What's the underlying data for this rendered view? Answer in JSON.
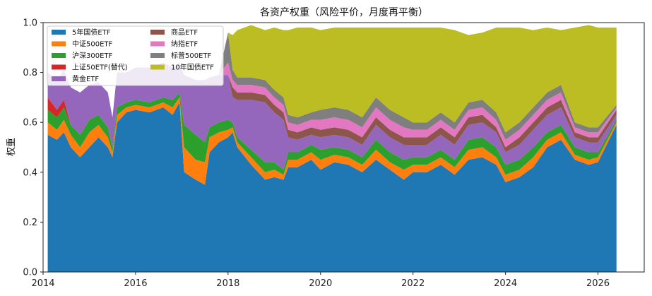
{
  "chart_data": {
    "type": "area",
    "title": "各资产权重（风险平价，月度再平衡）",
    "xlabel": "",
    "ylabel": "权重",
    "xlim": [
      2014.0,
      2027.0
    ],
    "ylim": [
      0.0,
      1.0
    ],
    "xticks": [
      2014,
      2016,
      2018,
      2020,
      2022,
      2024,
      2026
    ],
    "yticks": [
      0.0,
      0.2,
      0.4,
      0.6,
      0.8,
      1.0
    ],
    "ytick_labels": [
      "0.0",
      "0.2",
      "0.4",
      "0.6",
      "0.8",
      "1.0"
    ],
    "grid": false,
    "legend_position": "top-left",
    "stacked": true,
    "x": [
      2014.1,
      2014.3,
      2014.45,
      2014.6,
      2014.8,
      2015.0,
      2015.2,
      2015.4,
      2015.5,
      2015.6,
      2015.8,
      2016.0,
      2016.3,
      2016.6,
      2016.8,
      2016.95,
      2017.05,
      2017.3,
      2017.5,
      2017.6,
      2017.8,
      2018.0,
      2018.1,
      2018.2,
      2018.5,
      2018.8,
      2019.0,
      2019.2,
      2019.3,
      2019.5,
      2019.8,
      2020.0,
      2020.3,
      2020.6,
      2020.9,
      2021.2,
      2021.5,
      2021.8,
      2022.0,
      2022.3,
      2022.6,
      2022.9,
      2023.2,
      2023.5,
      2023.8,
      2024.0,
      2024.3,
      2024.6,
      2024.9,
      2025.2,
      2025.5,
      2025.8,
      2026.0,
      2026.4
    ],
    "series": [
      {
        "name": "5年国债ETF",
        "color": "#1f77b4",
        "values": [
          0.55,
          0.53,
          0.56,
          0.5,
          0.46,
          0.5,
          0.54,
          0.5,
          0.46,
          0.6,
          0.64,
          0.65,
          0.64,
          0.66,
          0.63,
          0.68,
          0.4,
          0.37,
          0.35,
          0.48,
          0.52,
          0.54,
          0.56,
          0.5,
          0.43,
          0.37,
          0.38,
          0.37,
          0.42,
          0.42,
          0.45,
          0.41,
          0.44,
          0.43,
          0.4,
          0.45,
          0.41,
          0.37,
          0.4,
          0.4,
          0.43,
          0.39,
          0.45,
          0.46,
          0.43,
          0.36,
          0.38,
          0.42,
          0.5,
          0.53,
          0.45,
          0.43,
          0.44,
          0.59
        ]
      },
      {
        "name": "中证500ETF",
        "color": "#ff7f0e",
        "values": [
          0.05,
          0.04,
          0.05,
          0.05,
          0.04,
          0.06,
          0.05,
          0.04,
          0.02,
          0.03,
          0.02,
          0.02,
          0.02,
          0.02,
          0.03,
          0.02,
          0.1,
          0.08,
          0.09,
          0.06,
          0.04,
          0.03,
          0.02,
          0.02,
          0.03,
          0.03,
          0.03,
          0.02,
          0.03,
          0.03,
          0.03,
          0.04,
          0.03,
          0.03,
          0.03,
          0.04,
          0.03,
          0.04,
          0.03,
          0.03,
          0.03,
          0.03,
          0.04,
          0.04,
          0.03,
          0.03,
          0.03,
          0.04,
          0.03,
          0.03,
          0.02,
          0.02,
          0.02,
          0.01
        ]
      },
      {
        "name": "沪深300ETF",
        "color": "#2ca02c",
        "values": [
          0.05,
          0.05,
          0.05,
          0.04,
          0.05,
          0.05,
          0.04,
          0.04,
          0.02,
          0.03,
          0.02,
          0.02,
          0.02,
          0.02,
          0.03,
          0.02,
          0.09,
          0.1,
          0.08,
          0.04,
          0.04,
          0.04,
          0.02,
          0.02,
          0.03,
          0.04,
          0.03,
          0.02,
          0.03,
          0.03,
          0.03,
          0.04,
          0.03,
          0.03,
          0.03,
          0.04,
          0.04,
          0.04,
          0.03,
          0.03,
          0.03,
          0.03,
          0.04,
          0.04,
          0.04,
          0.04,
          0.04,
          0.04,
          0.03,
          0.03,
          0.03,
          0.03,
          0.02,
          0.01
        ]
      },
      {
        "name": "上证50ETF(替代)",
        "color": "#d62728",
        "values": [
          0.05,
          0.03,
          0.03,
          0.0,
          0.0,
          0.0,
          0.0,
          0.0,
          0.0,
          0.0,
          0.0,
          0.0,
          0.0,
          0.0,
          0.0,
          0.0,
          0.0,
          0.0,
          0.0,
          0.0,
          0.0,
          0.0,
          0.0,
          0.0,
          0.0,
          0.0,
          0.0,
          0.0,
          0.0,
          0.0,
          0.0,
          0.0,
          0.0,
          0.0,
          0.0,
          0.0,
          0.0,
          0.0,
          0.0,
          0.0,
          0.0,
          0.0,
          0.0,
          0.0,
          0.0,
          0.0,
          0.0,
          0.0,
          0.0,
          0.0,
          0.0,
          0.0,
          0.0,
          0.0
        ]
      },
      {
        "name": "黄金ETF",
        "color": "#9467bd",
        "values": [
          0.1,
          0.12,
          0.12,
          0.15,
          0.17,
          0.14,
          0.13,
          0.14,
          0.12,
          0.14,
          0.12,
          0.13,
          0.14,
          0.14,
          0.13,
          0.12,
          0.2,
          0.22,
          0.25,
          0.2,
          0.19,
          0.18,
          0.1,
          0.15,
          0.2,
          0.24,
          0.2,
          0.2,
          0.06,
          0.05,
          0.04,
          0.05,
          0.05,
          0.05,
          0.05,
          0.06,
          0.06,
          0.06,
          0.05,
          0.05,
          0.06,
          0.06,
          0.06,
          0.06,
          0.06,
          0.05,
          0.06,
          0.07,
          0.07,
          0.07,
          0.04,
          0.04,
          0.04,
          0.02
        ]
      },
      {
        "name": "商品ETF",
        "color": "#8c564b",
        "values": [
          0.0,
          0.0,
          0.0,
          0.0,
          0.0,
          0.0,
          0.0,
          0.0,
          0.0,
          0.0,
          0.0,
          0.0,
          0.0,
          0.0,
          0.0,
          0.0,
          0.0,
          0.0,
          0.0,
          0.0,
          0.0,
          0.0,
          0.04,
          0.03,
          0.03,
          0.03,
          0.03,
          0.03,
          0.03,
          0.03,
          0.03,
          0.03,
          0.03,
          0.03,
          0.03,
          0.03,
          0.03,
          0.03,
          0.03,
          0.03,
          0.03,
          0.03,
          0.03,
          0.03,
          0.02,
          0.02,
          0.03,
          0.03,
          0.03,
          0.03,
          0.02,
          0.02,
          0.02,
          0.02
        ]
      },
      {
        "name": "纳指ETF",
        "color": "#e377c2",
        "values": [
          0.0,
          0.0,
          0.0,
          0.0,
          0.0,
          0.0,
          0.0,
          0.0,
          0.0,
          0.0,
          0.0,
          0.0,
          0.0,
          0.0,
          0.0,
          0.0,
          0.0,
          0.0,
          0.0,
          0.0,
          0.0,
          0.05,
          0.03,
          0.03,
          0.03,
          0.03,
          0.03,
          0.03,
          0.03,
          0.03,
          0.03,
          0.04,
          0.04,
          0.04,
          0.04,
          0.04,
          0.04,
          0.04,
          0.03,
          0.03,
          0.03,
          0.03,
          0.03,
          0.03,
          0.03,
          0.03,
          0.03,
          0.03,
          0.03,
          0.03,
          0.02,
          0.02,
          0.02,
          0.01
        ]
      },
      {
        "name": "标普500ETF",
        "color": "#7f7f7f",
        "values": [
          0.0,
          0.0,
          0.0,
          0.0,
          0.0,
          0.0,
          0.0,
          0.0,
          0.0,
          0.0,
          0.0,
          0.0,
          0.0,
          0.0,
          0.0,
          0.0,
          0.0,
          0.0,
          0.0,
          0.0,
          0.0,
          0.12,
          0.04,
          0.03,
          0.03,
          0.03,
          0.03,
          0.03,
          0.03,
          0.03,
          0.03,
          0.04,
          0.04,
          0.04,
          0.04,
          0.04,
          0.04,
          0.04,
          0.03,
          0.03,
          0.03,
          0.03,
          0.03,
          0.03,
          0.03,
          0.03,
          0.03,
          0.03,
          0.03,
          0.03,
          0.02,
          0.02,
          0.02,
          0.01
        ]
      },
      {
        "name": "10年国债ETF",
        "color": "#bcbd22",
        "values": [
          0.0,
          0.0,
          0.0,
          0.0,
          0.0,
          0.0,
          0.0,
          0.0,
          0.0,
          0.0,
          0.0,
          0.0,
          0.0,
          0.0,
          0.0,
          0.0,
          0.0,
          0.0,
          0.0,
          0.0,
          0.0,
          0.0,
          0.14,
          0.19,
          0.21,
          0.2,
          0.25,
          0.27,
          0.34,
          0.36,
          0.34,
          0.32,
          0.32,
          0.33,
          0.36,
          0.28,
          0.33,
          0.36,
          0.38,
          0.38,
          0.34,
          0.37,
          0.27,
          0.27,
          0.34,
          0.42,
          0.38,
          0.31,
          0.26,
          0.22,
          0.38,
          0.41,
          0.4,
          0.31
        ]
      }
    ]
  }
}
